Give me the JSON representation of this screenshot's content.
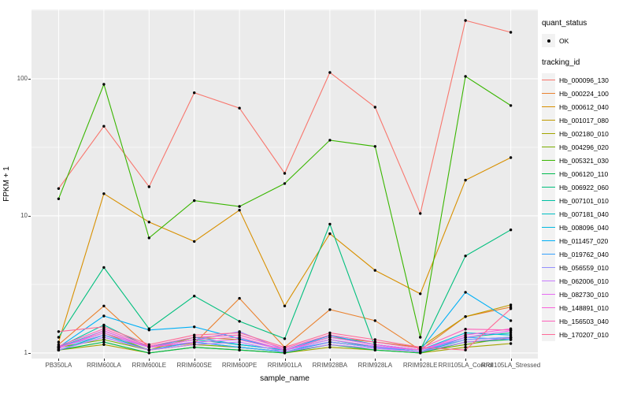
{
  "y_axis": {
    "title": "FPKM + 1"
  },
  "x_axis": {
    "title": "sample_name"
  },
  "legend": {
    "quant_status": {
      "title": "quant_status",
      "items": [
        {
          "label": "OK"
        }
      ]
    },
    "tracking_id": {
      "title": "tracking_id"
    }
  },
  "colors": {
    "panel_bg": "#EBEBEB",
    "grid": "#FFFFFF",
    "tick_label": "#4D4D4D",
    "point": "#000000",
    "legend_key_bg": "#F2F2F2"
  },
  "chart_data": {
    "type": "line",
    "title": "",
    "xlabel": "sample_name",
    "ylabel": "FPKM + 1",
    "y_scale": "log10",
    "ylim": [
      0.91,
      320
    ],
    "y_major_ticks": [
      1,
      10,
      100
    ],
    "y_minor_ticks": [
      3.162,
      31.62,
      316.2
    ],
    "grid": true,
    "legend_position": "right",
    "point_shape": "filled-circle",
    "categories": [
      "PB350LA",
      "RRIM600LA",
      "RRIM600LE",
      "RRIM600SE",
      "RRIM600PE",
      "RRIM901LA",
      "RRIM928BA",
      "RRIM928LA",
      "RRIM928LE",
      "RRII105LA_Control",
      "RRII105LA_Stressed"
    ],
    "series": [
      {
        "name": "Hb_000096_130",
        "color": "#F8766D",
        "values": [
          15.8,
          45,
          16.3,
          79,
          61,
          20.4,
          111,
          62,
          10.4,
          266,
          218
        ]
      },
      {
        "name": "Hb_000224_100",
        "color": "#EA8331",
        "values": [
          1.15,
          2.2,
          1.1,
          1.17,
          2.5,
          1.1,
          2.07,
          1.72,
          1.05,
          1.84,
          2.16
        ]
      },
      {
        "name": "Hb_000612_040",
        "color": "#D89000",
        "values": [
          1.2,
          14.5,
          9.0,
          6.5,
          11.0,
          2.2,
          7.4,
          4.0,
          2.7,
          18.2,
          26.6
        ]
      },
      {
        "name": "Hb_001017_080",
        "color": "#C09B00",
        "values": [
          1.1,
          1.4,
          1.05,
          1.3,
          1.25,
          1.05,
          1.3,
          1.2,
          1.1,
          1.84,
          2.24
        ]
      },
      {
        "name": "Hb_002180_010",
        "color": "#A3A500",
        "values": [
          1.05,
          1.15,
          1.0,
          1.1,
          1.05,
          1.0,
          1.1,
          1.05,
          1.0,
          1.1,
          1.17
        ]
      },
      {
        "name": "Hb_004296_020",
        "color": "#7CAE00",
        "values": [
          1.1,
          1.25,
          1.05,
          1.15,
          1.1,
          1.02,
          1.2,
          1.1,
          1.02,
          1.15,
          1.3
        ]
      },
      {
        "name": "Hb_005321_030",
        "color": "#39B600",
        "values": [
          13.3,
          91,
          6.9,
          12.9,
          11.7,
          17.2,
          35.6,
          32.1,
          1.3,
          104,
          63.8
        ]
      },
      {
        "name": "Hb_006120_110",
        "color": "#00BB4E",
        "values": [
          1.05,
          1.2,
          1.0,
          1.1,
          1.05,
          1.0,
          1.15,
          1.05,
          1.0,
          1.2,
          1.25
        ]
      },
      {
        "name": "Hb_006922_060",
        "color": "#00BF7D",
        "values": [
          1.3,
          4.2,
          1.5,
          2.6,
          1.7,
          1.27,
          8.7,
          1.1,
          1.05,
          5.1,
          7.9
        ]
      },
      {
        "name": "Hb_007101_010",
        "color": "#00C1A3",
        "values": [
          1.1,
          1.6,
          1.1,
          1.25,
          1.15,
          1.05,
          1.25,
          1.1,
          1.02,
          1.3,
          1.4
        ]
      },
      {
        "name": "Hb_007181_040",
        "color": "#00BFC4",
        "values": [
          1.05,
          1.35,
          1.05,
          1.2,
          1.1,
          1.02,
          1.2,
          1.1,
          1.02,
          1.25,
          1.3
        ]
      },
      {
        "name": "Hb_008096_040",
        "color": "#00BAE0",
        "values": [
          1.1,
          1.45,
          1.1,
          1.3,
          1.15,
          1.05,
          1.3,
          1.15,
          1.05,
          1.4,
          1.35
        ]
      },
      {
        "name": "Hb_011457_020",
        "color": "#00B0F6",
        "values": [
          1.1,
          1.86,
          1.47,
          1.55,
          1.27,
          1.05,
          1.34,
          1.15,
          1.05,
          2.77,
          1.72
        ]
      },
      {
        "name": "Hb_019762_040",
        "color": "#35A2FF",
        "values": [
          1.05,
          1.3,
          1.05,
          1.2,
          1.1,
          1.02,
          1.2,
          1.1,
          1.02,
          1.3,
          1.25
        ]
      },
      {
        "name": "Hb_056559_010",
        "color": "#9590FF",
        "values": [
          1.1,
          1.35,
          1.1,
          1.25,
          1.43,
          1.05,
          1.2,
          1.1,
          1.05,
          1.25,
          1.3
        ]
      },
      {
        "name": "Hb_062006_010",
        "color": "#C77CFF",
        "values": [
          1.05,
          1.3,
          1.05,
          1.15,
          1.2,
          1.02,
          1.15,
          1.08,
          1.02,
          1.2,
          1.28
        ]
      },
      {
        "name": "Hb_082730_010",
        "color": "#E76BF3",
        "values": [
          1.1,
          1.4,
          1.1,
          1.2,
          1.25,
          1.05,
          1.25,
          1.12,
          1.05,
          1.3,
          1.45
        ]
      },
      {
        "name": "Hb_148891_010",
        "color": "#FA62DB",
        "values": [
          1.08,
          1.45,
          1.1,
          1.25,
          1.3,
          1.05,
          1.3,
          1.15,
          1.05,
          1.35,
          1.5
        ]
      },
      {
        "name": "Hb_156503_040",
        "color": "#FF62BC",
        "values": [
          1.12,
          1.5,
          1.12,
          1.3,
          1.35,
          1.08,
          1.35,
          1.2,
          1.08,
          1.49,
          1.47
        ]
      },
      {
        "name": "Hb_170207_010",
        "color": "#FF6A98",
        "values": [
          1.43,
          1.55,
          1.15,
          1.35,
          1.4,
          1.1,
          1.4,
          1.25,
          1.1,
          1.05,
          2.1
        ]
      }
    ]
  }
}
